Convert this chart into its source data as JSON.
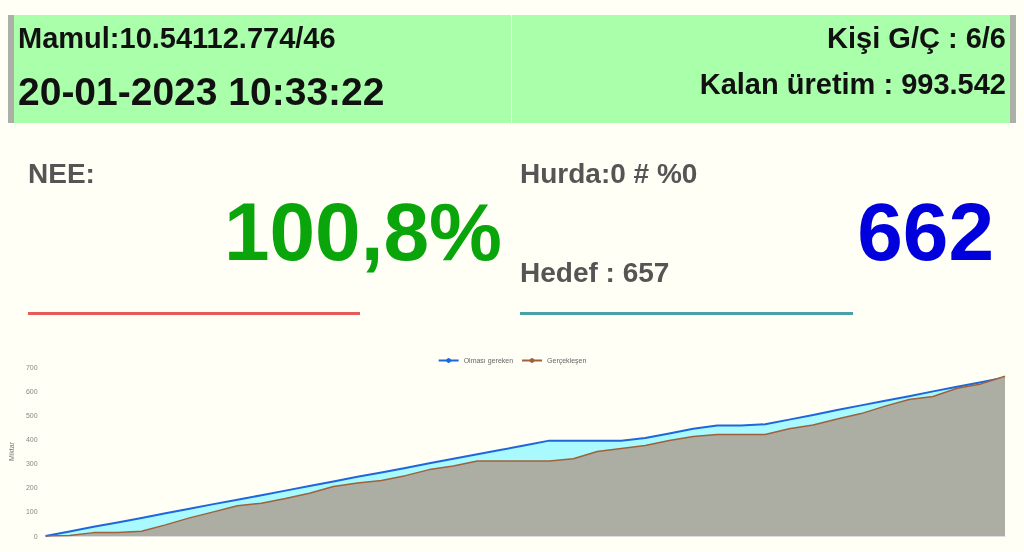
{
  "chart_data": [
    {
      "type": "other",
      "annotations": [
        "Mamul:10.54112.774/46",
        "20-01-2023 10:33:22",
        "Kişi G/Ç : 6/6",
        "Kalan üretim : 993.542",
        "NEE:",
        "100,8%",
        "Hurda:0 # %0",
        "Hedef : 657",
        "662"
      ]
    },
    {
      "type": "area",
      "ylabel": "Miktar",
      "legend": "top",
      "grid": false,
      "marker": "none",
      "categories": [
        null,
        null,
        null,
        null,
        null,
        null,
        null,
        null,
        null,
        null,
        null,
        null,
        null,
        null,
        null,
        null,
        null,
        null,
        null,
        null,
        null,
        null,
        null,
        null,
        null,
        null,
        null,
        null,
        null,
        null,
        null,
        null,
        null,
        null,
        null,
        null,
        null,
        null,
        null,
        null,
        null
      ],
      "ylim": [
        0,
        700
      ],
      "yticks": [
        0,
        100,
        200,
        300,
        400,
        500,
        600,
        700
      ],
      "series": [
        {
          "name": "Olması gereken",
          "color": "#1f66dd",
          "values": [
            0,
            19,
            38,
            56,
            75,
            94,
            113,
            132,
            150,
            169,
            188,
            207,
            226,
            245,
            263,
            282,
            301,
            320,
            339,
            357,
            376,
            395,
            395,
            395,
            395,
            406,
            425,
            444,
            458,
            458,
            463,
            482,
            501,
            522,
            541,
            560,
            579,
            599,
            618,
            637,
            657
          ]
        },
        {
          "name": "Gerçekleşen",
          "color": "#a0603a",
          "values": [
            0,
            2,
            14,
            14,
            20,
            46,
            75,
            100,
            125,
            136,
            155,
            177,
            205,
            220,
            230,
            250,
            275,
            290,
            311,
            311,
            311,
            311,
            320,
            350,
            362,
            375,
            396,
            412,
            420,
            420,
            420,
            444,
            460,
            485,
            507,
            538,
            565,
            578,
            612,
            630,
            662
          ]
        }
      ]
    }
  ]
}
